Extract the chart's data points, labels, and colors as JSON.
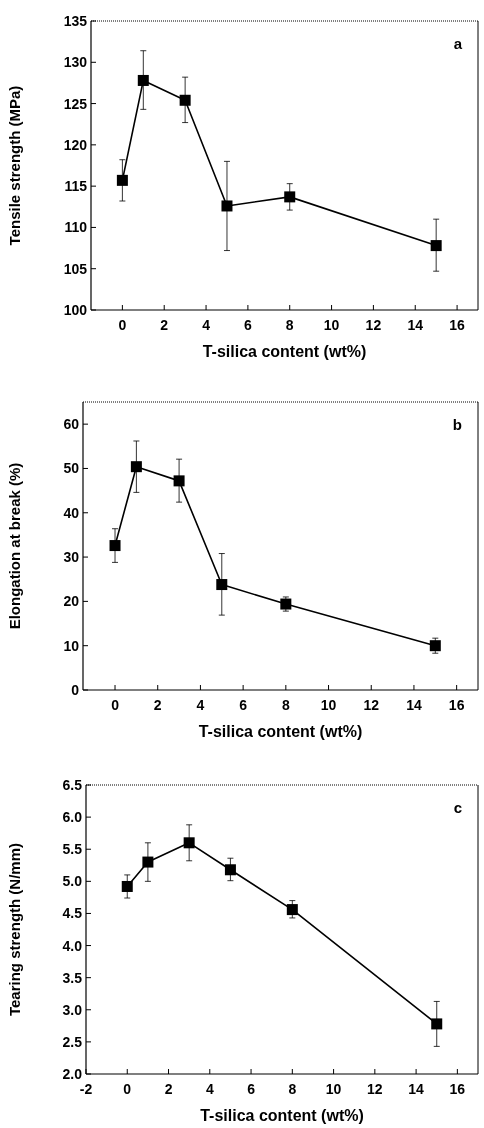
{
  "chart_data": [
    {
      "type": "line",
      "xlabel": "T-silica content (wt%)",
      "ylabel": "Tensile strength (MPa)",
      "annotations": [
        "a"
      ],
      "x": [
        0,
        1,
        3,
        5,
        8,
        15
      ],
      "series": [
        {
          "color": "#000000",
          "values": [
            115.7,
            127.8,
            125.4,
            112.6,
            113.7,
            107.8
          ],
          "errors": [
            [
              113.2,
              118.2
            ],
            [
              124.3,
              131.4
            ],
            [
              122.7,
              128.2
            ],
            [
              107.2,
              118.0
            ],
            [
              112.1,
              115.3
            ],
            [
              104.7,
              111.0
            ]
          ]
        }
      ],
      "xlim": [
        -1.5,
        17
      ],
      "xticks": [
        0,
        2,
        4,
        6,
        8,
        10,
        12,
        14,
        16
      ],
      "ylim": [
        100,
        135
      ],
      "yticks": [
        100,
        105,
        110,
        115,
        120,
        125,
        130,
        135
      ],
      "marker": "square"
    },
    {
      "type": "line",
      "xlabel": "T-silica content (wt%)",
      "ylabel": "Elongation at break (%)",
      "annotations": [
        "b"
      ],
      "x": [
        0,
        1,
        3,
        5,
        8,
        15
      ],
      "series": [
        {
          "color": "#000000",
          "values": [
            32.6,
            50.4,
            47.2,
            23.8,
            19.4,
            10.0
          ],
          "errors": [
            [
              28.8,
              36.4
            ],
            [
              44.6,
              56.2
            ],
            [
              42.4,
              52.1
            ],
            [
              16.9,
              30.8
            ],
            [
              17.8,
              21.0
            ],
            [
              8.3,
              11.7
            ]
          ]
        }
      ],
      "xlim": [
        -1.5,
        17
      ],
      "xticks": [
        0,
        2,
        4,
        6,
        8,
        10,
        12,
        14,
        16
      ],
      "ylim": [
        0,
        65
      ],
      "yticks": [
        0,
        10,
        20,
        30,
        40,
        50,
        60
      ],
      "marker": "square"
    },
    {
      "type": "line",
      "xlabel": "T-silica content (wt%)",
      "ylabel": "Tearing strength (N/mm)",
      "annotations": [
        "c"
      ],
      "x": [
        0,
        1,
        3,
        5,
        8,
        15
      ],
      "series": [
        {
          "color": "#000000",
          "values": [
            4.92,
            5.3,
            5.6,
            5.18,
            4.56,
            2.78
          ],
          "errors": [
            [
              4.74,
              5.1
            ],
            [
              5.0,
              5.6
            ],
            [
              5.32,
              5.88
            ],
            [
              5.01,
              5.36
            ],
            [
              4.43,
              4.7
            ],
            [
              2.43,
              3.13
            ]
          ]
        }
      ],
      "xlim": [
        -2,
        17
      ],
      "xticks": [
        -2,
        0,
        2,
        4,
        6,
        8,
        10,
        12,
        14,
        16
      ],
      "ylim": [
        2.0,
        6.5
      ],
      "yticks": [
        {
          "value": 2.0,
          "label": "2.0"
        },
        {
          "value": 2.5,
          "label": "2.5"
        },
        {
          "value": 3.0,
          "label": "3.0"
        },
        {
          "value": 3.5,
          "label": "3.5"
        },
        {
          "value": 4.0,
          "label": "4.0"
        },
        {
          "value": 4.5,
          "label": "4.5"
        },
        {
          "value": 5.0,
          "label": "5.0"
        },
        {
          "value": 5.5,
          "label": "5.5"
        },
        {
          "value": 6.0,
          "label": "6.0"
        },
        {
          "value": 6.5,
          "label": "6.5"
        }
      ],
      "marker": "square"
    }
  ]
}
